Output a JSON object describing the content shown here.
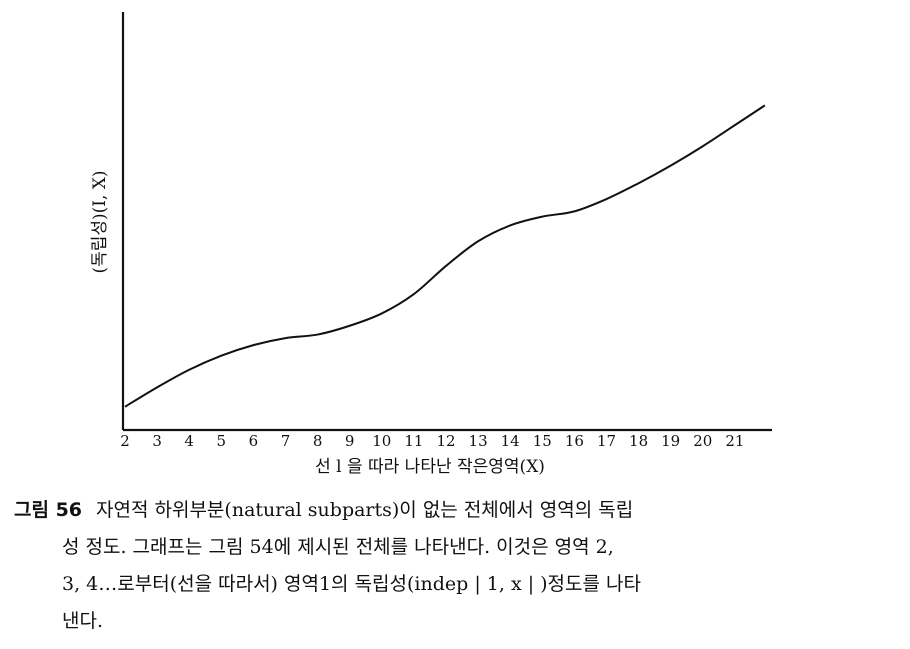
{
  "chart_data": {
    "type": "line",
    "xlabel": "선 l 을 따라 나타난 작은영역(X)",
    "ylabel": "(독립성)(I, X)",
    "categories": [
      "2",
      "3",
      "4",
      "5",
      "6",
      "7",
      "8",
      "9",
      "10",
      "11",
      "12",
      "13",
      "14",
      "15",
      "16",
      "17",
      "18",
      "19",
      "20",
      "21"
    ],
    "x": [
      2,
      3,
      4,
      5,
      6,
      7,
      8,
      9,
      10,
      11,
      12,
      13,
      14,
      15,
      16,
      17,
      18,
      19,
      20,
      21
    ],
    "y": [
      0.3,
      1.4,
      2.4,
      3.2,
      3.8,
      4.2,
      4.4,
      4.9,
      5.6,
      6.7,
      8.3,
      9.7,
      10.6,
      11.1,
      11.4,
      12.1,
      13.0,
      14.0,
      15.1,
      16.3
    ],
    "ylim": [
      0,
      20
    ],
    "grid": false,
    "legend": "none"
  },
  "caption": {
    "label": "그림 56",
    "lines": [
      "자연적 하위부분(natural subparts)이 없는 전체에서 영역의 독립",
      "성 정도. 그래프는 그림 54에 제시된 전체를 나타낸다. 이것은 영역 2,",
      "3, 4…로부터(선을 따라서) 영역1의 독립성(indep | 1, x | )정도를 나타",
      "낸다."
    ]
  }
}
